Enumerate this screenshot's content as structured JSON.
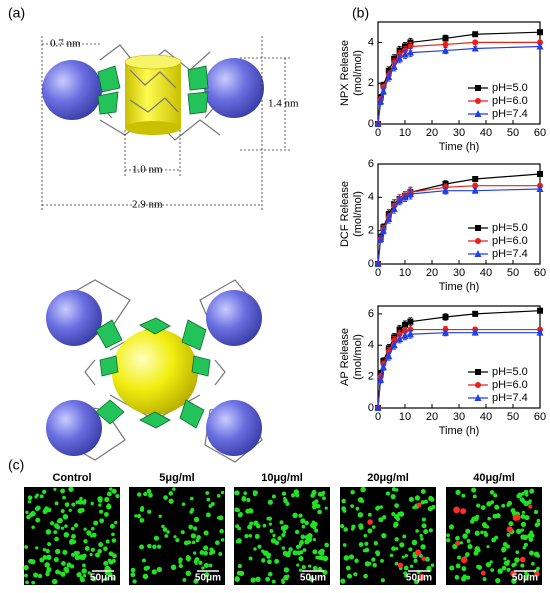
{
  "panel_labels": [
    "(a)",
    "(b)",
    "(c)"
  ],
  "structure": {
    "dimensions": [
      "0.7 nm",
      "1.4 nm",
      "1.0 nm",
      "2.9 nm"
    ]
  },
  "chart_data": [
    {
      "type": "line",
      "ylabel": [
        "NPX Release",
        "(mol/mol)"
      ],
      "xlabel": "Time (h)",
      "x": [
        0,
        1,
        2,
        4,
        6,
        8,
        10,
        12,
        25,
        36,
        60
      ],
      "xlim": [
        0,
        60
      ],
      "xticks": [
        0,
        10,
        20,
        30,
        40,
        50,
        60
      ],
      "ylim": [
        0,
        5
      ],
      "yticks": [
        0,
        2,
        4
      ],
      "legend": "lower right",
      "series": [
        {
          "name": "pH=5.0",
          "color": "#000000",
          "marker": "square",
          "values": [
            0,
            1.3,
            1.9,
            2.6,
            3.2,
            3.6,
            3.8,
            4.0,
            4.2,
            4.4,
            4.5
          ],
          "errors": [
            0,
            0.15,
            0.15,
            0.2,
            0.2,
            0.2,
            0.2,
            0.2,
            0.15,
            0.1,
            0.1
          ]
        },
        {
          "name": "pH=6.0",
          "color": "#e8221b",
          "marker": "circle",
          "values": [
            0,
            1.2,
            1.8,
            2.4,
            3.0,
            3.4,
            3.6,
            3.8,
            3.9,
            4.0,
            4.0
          ],
          "errors": [
            0,
            0.15,
            0.15,
            0.2,
            0.2,
            0.2,
            0.2,
            0.2,
            0.15,
            0.1,
            0.1
          ]
        },
        {
          "name": "pH=7.4",
          "color": "#1f3fe8",
          "marker": "triangle",
          "values": [
            0,
            1.1,
            1.6,
            2.3,
            2.8,
            3.2,
            3.4,
            3.5,
            3.6,
            3.7,
            3.8
          ],
          "errors": [
            0,
            0.15,
            0.15,
            0.2,
            0.2,
            0.2,
            0.2,
            0.2,
            0.15,
            0.1,
            0.1
          ]
        }
      ]
    },
    {
      "type": "line",
      "ylabel": [
        "DCF Release",
        "(mol/mol)"
      ],
      "xlabel": "Time (h)",
      "x": [
        0,
        1,
        2,
        4,
        6,
        8,
        10,
        12,
        25,
        36,
        60
      ],
      "xlim": [
        0,
        60
      ],
      "xticks": [
        0,
        10,
        20,
        30,
        40,
        50,
        60
      ],
      "ylim": [
        0,
        6
      ],
      "yticks": [
        0,
        2,
        4,
        6
      ],
      "legend": "lower right",
      "series": [
        {
          "name": "pH=5.0",
          "color": "#000000",
          "marker": "square",
          "values": [
            0,
            1.6,
            2.2,
            3.0,
            3.6,
            3.9,
            4.1,
            4.3,
            4.8,
            5.1,
            5.4
          ],
          "errors": [
            0,
            0.2,
            0.2,
            0.25,
            0.25,
            0.25,
            0.25,
            0.3,
            0.2,
            0.15,
            0.1
          ]
        },
        {
          "name": "pH=6.0",
          "color": "#e8221b",
          "marker": "circle",
          "values": [
            0,
            1.5,
            2.1,
            2.8,
            3.5,
            3.9,
            4.1,
            4.3,
            4.6,
            4.7,
            4.7
          ],
          "errors": [
            0,
            0.2,
            0.2,
            0.25,
            0.25,
            0.25,
            0.25,
            0.3,
            0.2,
            0.15,
            0.1
          ]
        },
        {
          "name": "pH=7.4",
          "color": "#1f3fe8",
          "marker": "triangle",
          "values": [
            0,
            1.5,
            2.0,
            2.7,
            3.3,
            3.8,
            4.0,
            4.2,
            4.4,
            4.4,
            4.5
          ],
          "errors": [
            0,
            0.2,
            0.2,
            0.25,
            0.25,
            0.25,
            0.25,
            0.3,
            0.2,
            0.15,
            0.1
          ]
        }
      ]
    },
    {
      "type": "line",
      "ylabel": [
        "AP Release",
        "(mol/mol)"
      ],
      "xlabel": "Time (h)",
      "x": [
        0,
        1,
        2,
        4,
        6,
        8,
        10,
        12,
        25,
        36,
        60
      ],
      "xlim": [
        0,
        60
      ],
      "xticks": [
        0,
        10,
        20,
        30,
        40,
        50,
        60
      ],
      "ylim": [
        0,
        6.5
      ],
      "yticks": [
        0,
        2,
        4,
        6
      ],
      "legend": "lower right",
      "series": [
        {
          "name": "pH=5.0",
          "color": "#000000",
          "marker": "square",
          "values": [
            0,
            2.2,
            3.0,
            3.8,
            4.5,
            5.0,
            5.3,
            5.5,
            5.8,
            6.0,
            6.2
          ],
          "errors": [
            0,
            0.2,
            0.2,
            0.25,
            0.25,
            0.25,
            0.25,
            0.25,
            0.2,
            0.15,
            0.1
          ]
        },
        {
          "name": "pH=6.0",
          "color": "#e8221b",
          "marker": "circle",
          "values": [
            0,
            2.0,
            2.8,
            3.6,
            4.3,
            4.7,
            4.9,
            5.0,
            5.0,
            5.0,
            5.0
          ],
          "errors": [
            0,
            0.2,
            0.2,
            0.25,
            0.25,
            0.25,
            0.25,
            0.25,
            0.2,
            0.15,
            0.1
          ]
        },
        {
          "name": "pH=7.4",
          "color": "#1f3fe8",
          "marker": "triangle",
          "values": [
            0,
            1.8,
            2.6,
            3.3,
            4.0,
            4.4,
            4.6,
            4.7,
            4.8,
            4.8,
            4.8
          ],
          "errors": [
            0,
            0.2,
            0.2,
            0.25,
            0.25,
            0.25,
            0.25,
            0.25,
            0.2,
            0.15,
            0.1
          ]
        }
      ]
    }
  ],
  "images": [
    {
      "label": "Control",
      "scale_bar": "50μm"
    },
    {
      "label": "5μg/ml",
      "scale_bar": "50μm"
    },
    {
      "label": "10μg/ml",
      "scale_bar": "50μm"
    },
    {
      "label": "20μg/ml",
      "scale_bar": "50μm"
    },
    {
      "label": "40μg/ml",
      "scale_bar": "50μm"
    }
  ]
}
